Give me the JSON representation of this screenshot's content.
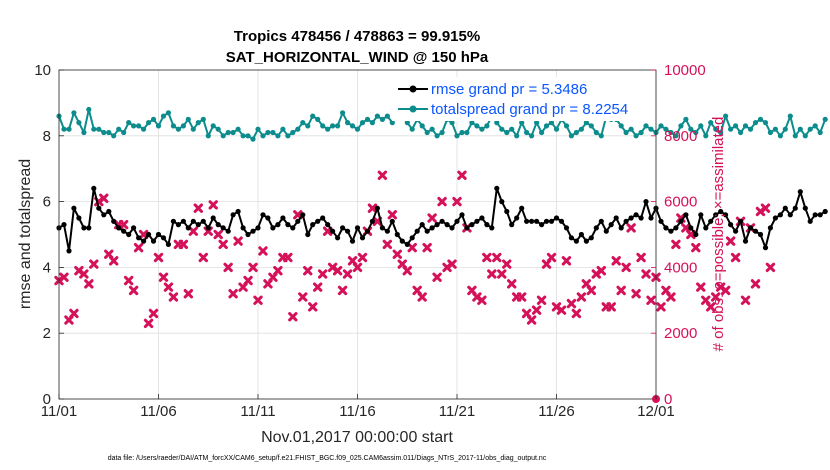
{
  "chart_data": {
    "type": "line",
    "title": "Tropics 478456 / 478863 = 99.915%",
    "subtitle": "SAT_HORIZONTAL_WIND @ 150 hPa",
    "xlabel": "Nov.01,2017 00:00:00 start",
    "ylabel": "rmse and totalspread",
    "ylabel_right": "# of obs: o=possible; ×=assimilated",
    "x_tick_labels": [
      "11/01",
      "11/06",
      "11/11",
      "11/16",
      "11/21",
      "11/26",
      "12/01"
    ],
    "x_tick_days": [
      0,
      5,
      10,
      15,
      20,
      25,
      30
    ],
    "xlim": [
      0,
      30
    ],
    "ylim": [
      0,
      10
    ],
    "y_ticks": [
      0,
      2,
      4,
      6,
      8,
      10
    ],
    "ylim_right": [
      0,
      10000
    ],
    "y_ticks_right": [
      0,
      2000,
      4000,
      6000,
      8000,
      10000
    ],
    "legend_position": "top-right",
    "series": [
      {
        "name": "rmse",
        "legend": "rmse grand pr = 5.3486",
        "color": "#000000",
        "axis": "left",
        "x_step_days": 0.25,
        "values": [
          5.2,
          5.3,
          4.5,
          5.8,
          5.5,
          5.2,
          5.2,
          6.4,
          5.8,
          5.6,
          5.7,
          5.4,
          5.2,
          5.1,
          5.0,
          5.2,
          4.9,
          4.8,
          5.0,
          4.8,
          5.0,
          4.9,
          4.7,
          5.4,
          5.3,
          5.4,
          5.2,
          5.4,
          5.3,
          5.4,
          5.2,
          5.5,
          5.3,
          5.2,
          5.1,
          5.6,
          5.7,
          5.2,
          5.0,
          5.1,
          5.2,
          5.6,
          5.5,
          5.2,
          5.3,
          5.5,
          5.3,
          5.2,
          5.4,
          5.6,
          5.0,
          5.3,
          5.4,
          5.5,
          5.3,
          5.1,
          4.9,
          5.2,
          5.1,
          4.8,
          5.2,
          4.9,
          5.1,
          5.4,
          5.8,
          5.2,
          5.1,
          5.4,
          5.0,
          4.8,
          4.7,
          4.9,
          5.1,
          5.3,
          5.1,
          5.2,
          5.3,
          5.4,
          5.3,
          5.2,
          5.4,
          5.6,
          5.2,
          5.3,
          5.4,
          5.5,
          5.3,
          5.2,
          6.4,
          6.0,
          5.7,
          5.3,
          5.5,
          5.8,
          5.4,
          5.4,
          5.4,
          5.3,
          5.4,
          5.4,
          5.5,
          5.4,
          5.2,
          4.9,
          4.8,
          5.0,
          4.8,
          4.9,
          5.2,
          5.4,
          5.1,
          5.3,
          5.5,
          5.2,
          5.4,
          5.5,
          5.6,
          5.5,
          6.0,
          5.5,
          5.8,
          5.4,
          5.2,
          5.1,
          5.2,
          5.4,
          5.6,
          5.2,
          5.0,
          5.6,
          5.2,
          5.4,
          5.6,
          5.7,
          5.6,
          5.3,
          5.1,
          5.4,
          4.8,
          5.2,
          5.1,
          5.0,
          4.6,
          5.2,
          5.5,
          5.6,
          5.8,
          5.6,
          5.8,
          6.3,
          5.8,
          5.4,
          5.6,
          5.6,
          5.7
        ]
      },
      {
        "name": "totalspread",
        "legend": "totalspread grand pr = 8.2254",
        "color": "#0c8c8c",
        "axis": "left",
        "x_step_days": 0.25,
        "values": [
          8.6,
          8.2,
          8.2,
          8.7,
          8.4,
          8.1,
          8.8,
          8.2,
          8.2,
          8.1,
          8.1,
          8.0,
          8.2,
          8.1,
          8.4,
          8.3,
          8.3,
          8.2,
          8.4,
          8.5,
          8.3,
          8.6,
          8.7,
          8.3,
          8.2,
          8.3,
          8.5,
          8.2,
          8.4,
          8.5,
          8.0,
          8.3,
          8.2,
          8.0,
          8.1,
          8.1,
          8.2,
          8.0,
          8.0,
          7.9,
          8.2,
          8.0,
          8.1,
          8.1,
          8.0,
          8.2,
          8.0,
          8.1,
          8.2,
          8.4,
          8.3,
          8.6,
          8.5,
          8.3,
          8.2,
          8.3,
          8.3,
          8.7,
          8.4,
          8.3,
          8.2,
          8.4,
          8.5,
          8.4,
          8.6,
          8.5,
          8.6,
          8.4,
          8.7,
          9.0,
          8.4,
          8.2,
          8.5,
          8.3,
          8.1,
          8.2,
          8.0,
          8.1,
          8.5,
          8.4,
          8.0,
          8.1,
          8.1,
          8.4,
          8.3,
          8.2,
          8.3,
          8.6,
          8.4,
          8.2,
          8.1,
          8.2,
          8.0,
          8.4,
          8.1,
          8.0,
          8.4,
          8.1,
          8.3,
          8.4,
          8.2,
          8.5,
          8.3,
          8.0,
          8.1,
          8.2,
          8.4,
          8.3,
          8.1,
          8.0,
          8.6,
          8.5,
          8.5,
          8.3,
          8.1,
          8.2,
          8.0,
          8.1,
          8.3,
          8.2,
          8.1,
          8.3,
          8.2,
          8.1,
          8.0,
          8.3,
          8.5,
          8.2,
          8.1,
          8.3,
          8.0,
          8.4,
          8.2,
          8.1,
          8.6,
          8.2,
          8.3,
          8.1,
          8.3,
          8.2,
          8.4,
          8.5,
          8.4,
          8.1,
          8.2,
          8.0,
          8.2,
          8.6,
          8.0,
          8.2,
          8.0,
          8.2,
          8.3,
          8.1,
          8.5
        ]
      },
      {
        "name": "obs assimilated",
        "color": "#d41159",
        "axis": "right",
        "marker": "x",
        "x_step_days": 0.25,
        "values": [
          3600,
          3700,
          2400,
          2600,
          3900,
          3800,
          3500,
          4100,
          6000,
          6100,
          4400,
          4200,
          5300,
          5300,
          3600,
          3300,
          4600,
          5000,
          2300,
          2600,
          4300,
          3700,
          3400,
          3100,
          4700,
          4700,
          3200,
          5100,
          5800,
          4300,
          5100,
          5900,
          5000,
          4700,
          4000,
          3200,
          4800,
          3400,
          3600,
          4000,
          3000,
          4500,
          3500,
          3700,
          3900,
          4300,
          4300,
          2500,
          5600,
          3100,
          3900,
          2800,
          3400,
          3800,
          5100,
          4000,
          3900,
          3300,
          3800,
          4200,
          4000,
          4300,
          5100,
          5800,
          5400,
          6800,
          4700,
          5600,
          4400,
          4100,
          3900,
          4600,
          3300,
          3100,
          4600,
          5500,
          3700,
          6000,
          4000,
          4100,
          6000,
          6800,
          5200,
          3300,
          3100,
          3000,
          4300,
          3800,
          4300,
          3800,
          4100,
          3500,
          3100,
          3100,
          2600,
          2400,
          2700,
          3000,
          4100,
          4300,
          2800,
          2700,
          4200,
          2900,
          2600,
          3100,
          3500,
          3300,
          3800,
          3900,
          2800,
          2800,
          4200,
          3300,
          4000,
          5200,
          3200,
          4300,
          3800,
          3000,
          3700,
          2800,
          3300,
          3100,
          4700,
          5500,
          5200,
          5000,
          4600,
          3400,
          3000,
          2800,
          3100,
          3400,
          3300,
          4800,
          4300,
          5400,
          3000,
          5200,
          3500,
          5700,
          5800,
          4000
        ]
      },
      {
        "name": "obs possible",
        "color": "#d41159",
        "axis": "right",
        "marker": "o",
        "points": [
          {
            "x": 30,
            "y": 0
          }
        ]
      }
    ]
  },
  "footnote": "data file: /Users/raeder/DAI/ATM_forcXX/CAM6_setup/f.e21.FHIST_BGC.f09_025.CAM6assim.011/Diags_NTrS_2017-11/obs_diag_output.nc"
}
